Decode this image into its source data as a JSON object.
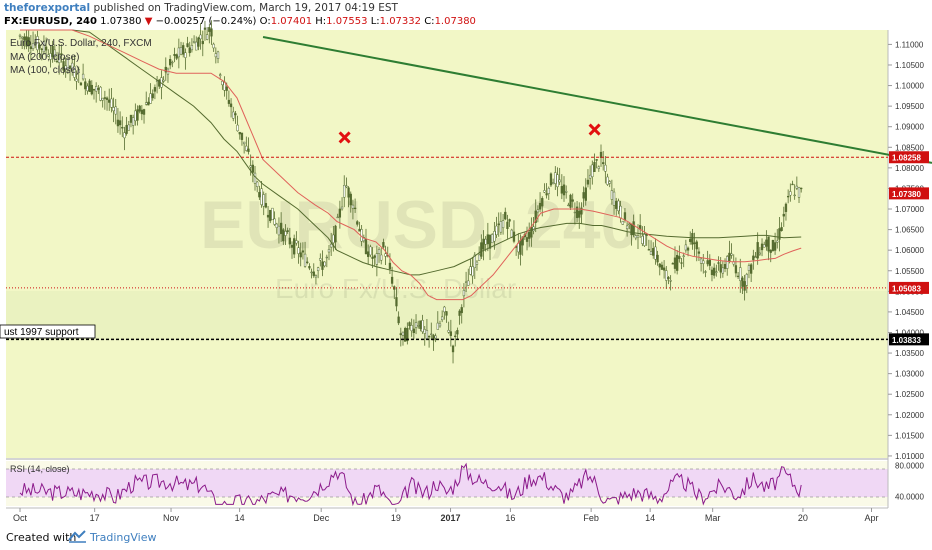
{
  "header": {
    "publisher": "theforexportal",
    "published_text": "published on TradingView.com, March 19, 2017 04:19 EST",
    "symbol": "FX:EURUSD, 240",
    "last": "1.07380",
    "change_arrow": "▼",
    "change": "−0.00257 (−0.24%)",
    "o_label": "O:",
    "o_value": "1.07401",
    "h_label": "H:",
    "h_value": "1.07553",
    "l_label": "L:",
    "l_value": "1.07332",
    "c_label": "C:",
    "c_value": "1.07380"
  },
  "legend": {
    "line1": "Euro Fx/U.S. Dollar, 240, FXCM",
    "line2": "MA (200, close)",
    "line3": "MA (100, close)"
  },
  "watermark": {
    "big": "EURUSD, 240",
    "small": "Euro Fx/U.S. Dollar"
  },
  "annotation": {
    "support_label": "ust 1997 support"
  },
  "price_labels": {
    "resistance": "1.08258",
    "last": "1.07380",
    "mid": "1.05083",
    "support": "1.03833"
  },
  "rsi_label": "RSI (14, close)",
  "footer": {
    "created_with": "Created with",
    "brand": "TradingView"
  },
  "colors": {
    "plot_bg": "#f2f7c6",
    "band_bg": "#eaf2c0",
    "candles": "#556b2f",
    "ma200": "#556b2f",
    "ma100": "#e0625a",
    "trendline": "#2e7d32",
    "level_red": "#d01010",
    "level_black": "#000000",
    "rsi_line": "#8b1a8b",
    "rsi_band": "#f0d8f5",
    "label_red_bg": "#d01010"
  },
  "chart_data": {
    "type": "candlestick",
    "y_ticks": [
      "1.11000",
      "1.10500",
      "1.10000",
      "1.09500",
      "1.09000",
      "1.08500",
      "1.08000",
      "1.07500",
      "1.07000",
      "1.06500",
      "1.06000",
      "1.05500",
      "1.05000",
      "1.04500",
      "1.04000",
      "1.03500",
      "1.03000",
      "1.02500",
      "1.02000",
      "1.01500",
      "1.01000"
    ],
    "ylim": [
      1.0095,
      1.1135
    ],
    "x_ticks": [
      "Oct",
      "17",
      "Nov",
      "14",
      "Dec",
      "19",
      "2017",
      "16",
      "Feb",
      "14",
      "Mar",
      "20",
      "Apr"
    ],
    "x_tick_pos": [
      0.0,
      0.086,
      0.174,
      0.253,
      0.347,
      0.433,
      0.496,
      0.565,
      0.658,
      0.726,
      0.798,
      0.902,
      0.981
    ],
    "levels": [
      {
        "name": "resistance",
        "value": 1.08258,
        "style": "red-dashed"
      },
      {
        "name": "mid",
        "value": 1.05083,
        "style": "red-dotted"
      },
      {
        "name": "support",
        "value": 1.03833,
        "style": "black-dashed"
      }
    ],
    "trendline": {
      "from": [
        0.28,
        1.1118
      ],
      "to": [
        1.0,
        1.0812
      ]
    },
    "x_marks": [
      {
        "t": 0.374,
        "y": 1.0874
      },
      {
        "t": 0.662,
        "y": 1.0893
      }
    ],
    "price_series_t": [
      0.0,
      0.03,
      0.06,
      0.08,
      0.1,
      0.12,
      0.14,
      0.16,
      0.18,
      0.2,
      0.22,
      0.235,
      0.25,
      0.26,
      0.27,
      0.28,
      0.3,
      0.32,
      0.34,
      0.355,
      0.365,
      0.375,
      0.385,
      0.395,
      0.41,
      0.42,
      0.43,
      0.44,
      0.45,
      0.46,
      0.47,
      0.48,
      0.49,
      0.5,
      0.51,
      0.52,
      0.53,
      0.545,
      0.56,
      0.575,
      0.59,
      0.6,
      0.615,
      0.63,
      0.645,
      0.66,
      0.67,
      0.68,
      0.69,
      0.7,
      0.715,
      0.73,
      0.745,
      0.76,
      0.775,
      0.79,
      0.805,
      0.82,
      0.835,
      0.85,
      0.86,
      0.87,
      0.88,
      0.89,
      0.9
    ],
    "price_series_v": [
      1.112,
      1.109,
      1.104,
      1.1,
      1.097,
      1.089,
      1.094,
      1.1,
      1.107,
      1.11,
      1.114,
      1.1,
      1.091,
      1.085,
      1.078,
      1.072,
      1.065,
      1.06,
      1.055,
      1.058,
      1.065,
      1.076,
      1.071,
      1.062,
      1.057,
      1.061,
      1.052,
      1.038,
      1.041,
      1.043,
      1.038,
      1.04,
      1.045,
      1.036,
      1.048,
      1.055,
      1.06,
      1.063,
      1.068,
      1.06,
      1.065,
      1.072,
      1.078,
      1.073,
      1.069,
      1.08,
      1.082,
      1.075,
      1.07,
      1.066,
      1.064,
      1.06,
      1.053,
      1.058,
      1.063,
      1.056,
      1.055,
      1.058,
      1.052,
      1.06,
      1.062,
      1.06,
      1.068,
      1.075,
      1.0738
    ],
    "ma200_v": [
      1.123,
      1.121,
      1.117,
      1.113,
      1.11,
      1.107,
      1.104,
      1.101,
      1.098,
      1.095,
      1.091,
      1.087,
      1.084,
      1.081,
      1.078,
      1.076,
      1.073,
      1.07,
      1.066,
      1.063,
      1.06,
      1.059,
      1.058,
      1.057,
      1.056,
      1.0555,
      1.055,
      1.0545,
      1.054,
      1.054,
      1.0545,
      1.055,
      1.0555,
      1.056,
      1.057,
      1.058,
      1.0595,
      1.061,
      1.0625,
      1.064,
      1.065,
      1.0655,
      1.066,
      1.0665,
      1.0665,
      1.066,
      1.066,
      1.0655,
      1.065,
      1.0645,
      1.064,
      1.0637,
      1.0634,
      1.0632,
      1.063,
      1.063,
      1.063,
      1.0632,
      1.0634,
      1.0636,
      1.0636,
      1.0633,
      1.063,
      1.0631,
      1.0632
    ],
    "ma100_v": [
      1.12,
      1.117,
      1.114,
      1.112,
      1.11,
      1.108,
      1.106,
      1.104,
      1.103,
      1.103,
      1.103,
      1.101,
      1.097,
      1.092,
      1.087,
      1.082,
      1.078,
      1.074,
      1.071,
      1.069,
      1.067,
      1.066,
      1.065,
      1.063,
      1.062,
      1.06,
      1.057,
      1.055,
      1.054,
      1.052,
      1.049,
      1.048,
      1.048,
      1.048,
      1.048,
      1.049,
      1.051,
      1.054,
      1.058,
      1.062,
      1.066,
      1.069,
      1.07,
      1.07,
      1.07,
      1.0695,
      1.069,
      1.0685,
      1.068,
      1.067,
      1.065,
      1.063,
      1.061,
      1.0595,
      1.0585,
      1.058,
      1.0575,
      1.0572,
      1.0572,
      1.0575,
      1.0578,
      1.058,
      1.059,
      1.0598,
      1.0605
    ],
    "rsi": {
      "label": "RSI (14, close)",
      "ticks": [
        "80.0000",
        "40.0000"
      ],
      "ylim": [
        28,
        86
      ],
      "band": [
        30,
        70
      ]
    }
  }
}
